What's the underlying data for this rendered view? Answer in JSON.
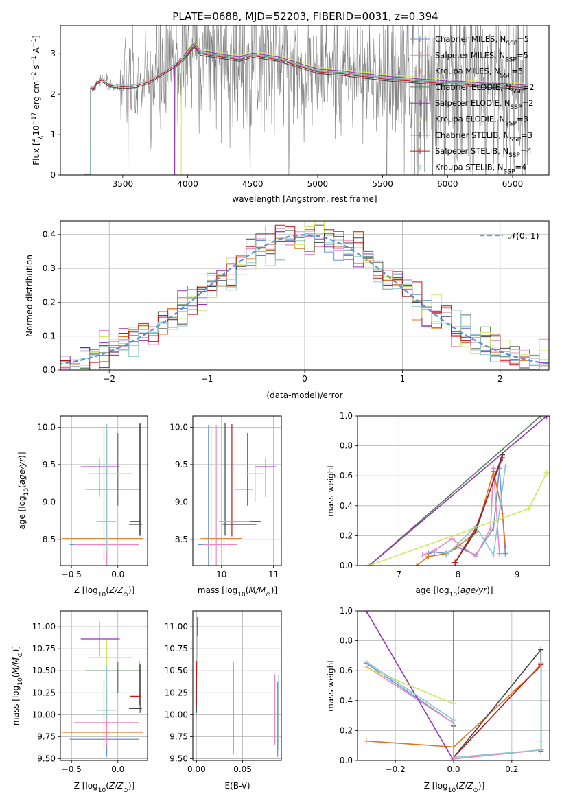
{
  "figure_title": "PLATE=0688, MJD=52203, FIBERID=0031, z=0.394",
  "colors": {
    "chabrier_miles": "#6a93d6",
    "salpeter_miles": "#e78ac3",
    "kroupa_miles": "#e1731f",
    "chabrier_elodie": "#4f7f58",
    "salpeter_elodie": "#9a30b8",
    "kroupa_elodie": "#cfe85a",
    "chabrier_stelib": "#454545",
    "salpeter_stelib": "#c0191b",
    "kroupa_stelib": "#8fc7cf",
    "data": "#808080",
    "gaussian": "#5b8fd6",
    "grid": "#b0b0b0"
  },
  "legend": [
    {
      "key": "chabrier_miles",
      "label": "Chabrier MILES, N",
      "sub": "SSP",
      "suffix": "=5"
    },
    {
      "key": "salpeter_miles",
      "label": "Salpeter MILES, N",
      "sub": "SSP",
      "suffix": "=5"
    },
    {
      "key": "kroupa_miles",
      "label": "Kroupa MILES, N",
      "sub": "SSP",
      "suffix": "=5"
    },
    {
      "key": "chabrier_elodie",
      "label": "Chabrier ELODIE, N",
      "sub": "SSP",
      "suffix": "=2"
    },
    {
      "key": "salpeter_elodie",
      "label": "Salpeter ELODIE, N",
      "sub": "SSP",
      "suffix": "=2"
    },
    {
      "key": "kroupa_elodie",
      "label": "Kroupa ELODIE, N",
      "sub": "SSP",
      "suffix": "=3"
    },
    {
      "key": "chabrier_stelib",
      "label": "Chabrier STELIB, N",
      "sub": "SSP",
      "suffix": "=3"
    },
    {
      "key": "salpeter_stelib",
      "label": "Salpeter STELIB, N",
      "sub": "SSP",
      "suffix": "=4"
    },
    {
      "key": "kroupa_stelib",
      "label": "Kroupa STELIB, N",
      "sub": "SSP",
      "suffix": "=4"
    }
  ],
  "chart_data": [
    {
      "id": "spectrum",
      "type": "line",
      "xlabel": "wavelength [Angstrom, rest frame]",
      "ylabel_parts": [
        "Flux [f",
        "λ",
        "10",
        "−17",
        " erg cm",
        "−2",
        " s",
        "−1",
        " A",
        "−1",
        "]"
      ],
      "xlim": [
        3020,
        6780
      ],
      "ylim": [
        0,
        3.7
      ],
      "xticks": [
        3500,
        4000,
        4500,
        5000,
        5500,
        6000,
        6500
      ],
      "yticks": [
        0,
        1,
        2,
        3
      ],
      "grid": false,
      "legend_placement": "upper right",
      "model_continuum": {
        "x": [
          3280,
          3300,
          3340,
          3400,
          3500,
          3600,
          3700,
          3800,
          3900,
          3960,
          4000,
          4050,
          4100,
          4200,
          4300,
          4400,
          4500,
          4600,
          4700,
          4800,
          4900,
          5000,
          5100,
          5200,
          5300,
          5400,
          5500,
          5600,
          5700,
          5800,
          5900,
          6000,
          6100,
          6200,
          6300,
          6400,
          6500,
          6600
        ],
        "y": [
          2.15,
          2.3,
          2.35,
          2.22,
          2.18,
          2.2,
          2.3,
          2.5,
          2.7,
          2.85,
          3.0,
          3.2,
          3.0,
          2.95,
          2.9,
          2.85,
          2.95,
          2.9,
          2.85,
          2.75,
          2.65,
          2.55,
          2.52,
          2.5,
          2.45,
          2.42,
          2.38,
          2.35,
          2.33,
          2.3,
          2.28,
          2.25,
          2.25,
          2.22,
          2.2,
          2.2,
          2.18,
          2.15
        ]
      },
      "model_start_wavelengths": {
        "chabrier_miles": 3540,
        "salpeter_miles": 3540,
        "kroupa_miles": 3540,
        "chabrier_elodie": 3900,
        "salpeter_elodie": 3900,
        "kroupa_elodie": 3950,
        "chabrier_stelib": 3250,
        "salpeter_stelib": 3250,
        "kroupa_stelib": 3250
      },
      "data_range": [
        3200,
        6620
      ]
    },
    {
      "id": "residuals",
      "type": "histogram",
      "xlabel": "(data-model)/error",
      "ylabel": "Normed distribution",
      "xlim": [
        -2.5,
        2.5
      ],
      "ylim": [
        0,
        0.44
      ],
      "xticks": [
        -2,
        -1,
        0,
        1,
        2
      ],
      "yticks": [
        0.0,
        0.1,
        0.2,
        0.3,
        0.4
      ],
      "grid": true,
      "legend": [
        {
          "label": "𝒩(0, 1)",
          "style": "dashed"
        }
      ],
      "bin_width": 0.1,
      "series_hint": "nine step histograms following a unit normal density"
    },
    {
      "id": "age_vs_Z",
      "type": "errorbar",
      "xlabel": "Z [log",
      "xlabel_sub": "10",
      "xlabel_rest": "(Z/Z",
      "ylabel": "age  [log",
      "xlim": [
        -0.62,
        0.32
      ],
      "ylim": [
        8.15,
        10.15
      ],
      "xticks": [
        -0.5,
        0.0
      ],
      "yticks": [
        8.5,
        9.0,
        9.5,
        10.0
      ],
      "grid": true,
      "points": [
        {
          "key": "chabrier_miles",
          "x": -0.12,
          "xerr": [
            0.4,
            0.35
          ],
          "y": 8.43,
          "yerr": [
            0.3,
            1.6
          ]
        },
        {
          "key": "salpeter_miles",
          "x": -0.12,
          "xerr": [
            0.35,
            0.35
          ],
          "y": 8.43,
          "yerr": [
            0.3,
            1.6
          ]
        },
        {
          "key": "kroupa_miles",
          "x": -0.15,
          "xerr": [
            0.45,
            0.42
          ],
          "y": 8.51,
          "yerr": [
            0.3,
            1.5
          ]
        },
        {
          "key": "chabrier_elodie",
          "x": 0.0,
          "xerr": [
            0.35,
            0.25
          ],
          "y": 9.17,
          "yerr": [
            0.22,
            0.75
          ]
        },
        {
          "key": "salpeter_elodie",
          "x": -0.2,
          "xerr": [
            0.2,
            0.22
          ],
          "y": 9.47,
          "yerr": [
            0.4,
            0.12
          ]
        },
        {
          "key": "kroupa_elodie",
          "x": -0.12,
          "xerr": [
            0.2,
            0.28
          ],
          "y": 9.38,
          "yerr": [
            0.38,
            0.12
          ]
        },
        {
          "key": "chabrier_stelib",
          "x": 0.24,
          "xerr": [
            0.12,
            0.02
          ],
          "y": 8.7,
          "yerr": [
            0.15,
            1.35
          ]
        },
        {
          "key": "salpeter_stelib",
          "x": 0.23,
          "xerr": [
            0.1,
            0.02
          ],
          "y": 8.74,
          "yerr": [
            0.2,
            1.3
          ]
        },
        {
          "key": "kroupa_stelib",
          "x": -0.12,
          "xerr": [
            0.1,
            0.1
          ],
          "y": 8.74,
          "yerr": [
            0.4,
            1.3
          ]
        }
      ]
    },
    {
      "id": "age_vs_mass",
      "type": "errorbar",
      "xlim": [
        9.45,
        11.15
      ],
      "ylim": [
        8.15,
        10.15
      ],
      "xticks": [
        10,
        11
      ],
      "yticks": [
        8.5,
        9.0,
        9.5,
        10.0
      ],
      "grid": true,
      "points": [
        {
          "key": "chabrier_miles",
          "x": 9.75,
          "xerr": [
            0.2,
            0.2
          ],
          "y": 8.43,
          "yerr": [
            0.3,
            1.6
          ]
        },
        {
          "key": "salpeter_miles",
          "x": 9.9,
          "xerr": [
            0.25,
            0.4
          ],
          "y": 8.43,
          "yerr": [
            0.3,
            1.6
          ]
        },
        {
          "key": "kroupa_miles",
          "x": 9.8,
          "xerr": [
            0.2,
            0.6
          ],
          "y": 8.51,
          "yerr": [
            0.3,
            1.5
          ]
        },
        {
          "key": "chabrier_elodie",
          "x": 10.5,
          "xerr": [
            0.25,
            0.1
          ],
          "y": 9.17,
          "yerr": [
            0.22,
            0.75
          ]
        },
        {
          "key": "salpeter_elodie",
          "x": 10.85,
          "xerr": [
            0.2,
            0.2
          ],
          "y": 9.47,
          "yerr": [
            0.4,
            0.12
          ]
        },
        {
          "key": "kroupa_elodie",
          "x": 10.65,
          "xerr": [
            0.2,
            0.2
          ],
          "y": 9.38,
          "yerr": [
            0.38,
            0.12
          ]
        },
        {
          "key": "chabrier_stelib",
          "x": 10.07,
          "xerr": [
            0.05,
            0.6
          ],
          "y": 8.7,
          "yerr": [
            0.15,
            1.35
          ]
        },
        {
          "key": "salpeter_stelib",
          "x": 10.2,
          "xerr": [
            0.1,
            0.55
          ],
          "y": 8.74,
          "yerr": [
            0.2,
            1.3
          ]
        },
        {
          "key": "kroupa_stelib",
          "x": 10.05,
          "xerr": [
            0.1,
            0.5
          ],
          "y": 8.74,
          "yerr": [
            0.4,
            1.3
          ]
        }
      ]
    },
    {
      "id": "weight_vs_age",
      "type": "line",
      "ylabel": "mass weight",
      "xlim": [
        6.3,
        9.55
      ],
      "ylim": [
        0,
        1.0
      ],
      "xticks": [
        7,
        8,
        9
      ],
      "yticks": [
        0.0,
        0.2,
        0.4,
        0.6,
        0.8,
        1.0
      ],
      "grid": true,
      "series": [
        {
          "key": "chabrier_miles",
          "x": [
            7.5,
            7.6,
            7.8,
            8.0,
            8.3,
            8.6,
            8.7,
            8.8
          ],
          "y": [
            0.08,
            0.09,
            0.08,
            0.12,
            0.07,
            0.25,
            0.65,
            0.08
          ]
        },
        {
          "key": "salpeter_miles",
          "x": [
            7.4,
            7.6,
            7.9,
            8.3,
            8.55,
            8.6,
            8.7
          ],
          "y": [
            0.07,
            0.1,
            0.18,
            0.06,
            0.25,
            0.65,
            0.08
          ]
        },
        {
          "key": "kroupa_miles",
          "x": [
            7.3,
            7.5,
            7.8,
            8.0,
            8.3,
            8.6,
            8.75,
            8.8
          ],
          "y": [
            0.0,
            0.06,
            0.08,
            0.13,
            0.22,
            0.63,
            0.35,
            0.13
          ]
        },
        {
          "key": "chabrier_elodie",
          "x": [
            6.5,
            9.4
          ],
          "y": [
            0.0,
            1.0
          ]
        },
        {
          "key": "salpeter_elodie",
          "x": [
            6.5,
            9.5
          ],
          "y": [
            0.0,
            1.0
          ]
        },
        {
          "key": "kroupa_elodie",
          "x": [
            6.5,
            9.2,
            9.5
          ],
          "y": [
            0.0,
            0.38,
            0.62
          ]
        },
        {
          "key": "chabrier_stelib",
          "x": [
            7.95,
            8.3,
            8.75
          ],
          "y": [
            0.02,
            0.23,
            0.74
          ]
        },
        {
          "key": "salpeter_stelib",
          "x": [
            7.95,
            8.3,
            8.75
          ],
          "y": [
            0.02,
            0.25,
            0.72
          ]
        },
        {
          "key": "kroupa_stelib",
          "x": [
            7.8,
            8.3,
            8.6,
            8.8
          ],
          "y": [
            0.07,
            0.26,
            0.07,
            0.66
          ]
        }
      ]
    },
    {
      "id": "mass_vs_Z",
      "type": "errorbar",
      "xlim": [
        -0.62,
        0.32
      ],
      "ylim": [
        9.48,
        11.18
      ],
      "xticks": [
        -0.5,
        0.0
      ],
      "yticks": [
        9.5,
        9.75,
        10.0,
        10.25,
        10.5,
        10.75,
        11.0
      ],
      "grid": true,
      "points": [
        {
          "key": "chabrier_miles",
          "x": -0.12,
          "xerr": [
            0.4,
            0.35
          ],
          "y": 9.72,
          "yerr": [
            0.2,
            0.2
          ]
        },
        {
          "key": "salpeter_miles",
          "x": -0.12,
          "xerr": [
            0.35,
            0.35
          ],
          "y": 9.91,
          "yerr": [
            0.25,
            0.4
          ]
        },
        {
          "key": "kroupa_miles",
          "x": -0.15,
          "xerr": [
            0.45,
            0.42
          ],
          "y": 9.8,
          "yerr": [
            0.2,
            0.6
          ]
        },
        {
          "key": "chabrier_elodie",
          "x": 0.0,
          "xerr": [
            0.35,
            0.25
          ],
          "y": 10.5,
          "yerr": [
            0.25,
            0.1
          ]
        },
        {
          "key": "salpeter_elodie",
          "x": -0.2,
          "xerr": [
            0.2,
            0.22
          ],
          "y": 10.86,
          "yerr": [
            0.2,
            0.2
          ]
        },
        {
          "key": "kroupa_elodie",
          "x": -0.12,
          "xerr": [
            0.2,
            0.28
          ],
          "y": 10.65,
          "yerr": [
            0.2,
            0.2
          ]
        },
        {
          "key": "chabrier_stelib",
          "x": 0.24,
          "xerr": [
            0.12,
            0.02
          ],
          "y": 10.07,
          "yerr": [
            0.05,
            0.5
          ]
        },
        {
          "key": "salpeter_stelib",
          "x": 0.23,
          "xerr": [
            0.1,
            0.02
          ],
          "y": 10.21,
          "yerr": [
            0.1,
            0.4
          ]
        },
        {
          "key": "kroupa_stelib",
          "x": -0.12,
          "xerr": [
            0.1,
            0.1
          ],
          "y": 10.05,
          "yerr": [
            0.1,
            0.5
          ]
        }
      ]
    },
    {
      "id": "mass_vs_ebv",
      "type": "errorbar",
      "xlabel": "E(B-V)",
      "xlim": [
        -0.004,
        0.092
      ],
      "ylim": [
        9.48,
        11.18
      ],
      "xticks": [
        0.0,
        0.05
      ],
      "xticklabels": [
        "0.00",
        "0.05"
      ],
      "yticks": [
        9.5,
        9.75,
        10.0,
        10.25,
        10.5,
        10.75,
        11.0
      ],
      "grid": true,
      "points": [
        {
          "key": "chabrier_miles",
          "x": 0.088,
          "xerr": [
            0,
            0
          ],
          "y": 9.72,
          "yerr": [
            0.2,
            0.65
          ]
        },
        {
          "key": "salpeter_miles",
          "x": 0.085,
          "xerr": [
            0,
            0
          ],
          "y": 9.91,
          "yerr": [
            0.25,
            0.55
          ]
        },
        {
          "key": "kroupa_miles",
          "x": 0.04,
          "xerr": [
            0,
            0
          ],
          "y": 10.1,
          "yerr": [
            0.55,
            0.5
          ]
        },
        {
          "key": "chabrier_elodie",
          "x": 0.0,
          "xerr": [
            0,
            0
          ],
          "y": 10.5,
          "yerr": [
            0.25,
            0.1
          ]
        },
        {
          "key": "salpeter_elodie",
          "x": 0.001,
          "xerr": [
            0,
            0
          ],
          "y": 10.86,
          "yerr": [
            0.2,
            0.25
          ]
        },
        {
          "key": "kroupa_elodie",
          "x": 0.001,
          "xerr": [
            0,
            0
          ],
          "y": 10.65,
          "yerr": [
            0.2,
            0.25
          ]
        },
        {
          "key": "chabrier_stelib",
          "x": 0.0,
          "xerr": [
            0,
            0
          ],
          "y": 10.07,
          "yerr": [
            0.05,
            0.5
          ]
        },
        {
          "key": "salpeter_stelib",
          "x": 0.0,
          "xerr": [
            0,
            0
          ],
          "y": 10.21,
          "yerr": [
            0.1,
            0.4
          ]
        },
        {
          "key": "kroupa_stelib",
          "x": 0.089,
          "xerr": [
            0,
            0
          ],
          "y": 10.05,
          "yerr": [
            0.45,
            0.4
          ]
        }
      ]
    },
    {
      "id": "weight_vs_Z",
      "type": "line",
      "ylabel": "mass weight",
      "xlim": [
        -0.33,
        0.33
      ],
      "ylim": [
        0,
        1.0
      ],
      "xticks": [
        -0.2,
        0.0,
        0.2
      ],
      "yticks": [
        0.0,
        0.2,
        0.4,
        0.6,
        0.8,
        1.0
      ],
      "grid": true,
      "series": [
        {
          "key": "chabrier_miles",
          "x": [
            -0.3,
            0.0,
            0.0,
            0.3,
            0.3
          ],
          "y": [
            0.65,
            0.25,
            0.01,
            0.07,
            0.65
          ]
        },
        {
          "key": "salpeter_miles",
          "x": [
            -0.3,
            0.0,
            0.0,
            0.3,
            0.3
          ],
          "y": [
            0.63,
            0.25,
            0.01,
            0.07,
            0.65
          ]
        },
        {
          "key": "kroupa_miles",
          "x": [
            -0.3,
            0.0,
            0.3,
            0.3
          ],
          "y": [
            0.13,
            0.09,
            0.63,
            0.13
          ]
        },
        {
          "key": "chabrier_elodie",
          "x": [
            0.0,
            0.0
          ],
          "y": [
            0.0,
            1.0
          ]
        },
        {
          "key": "salpeter_elodie",
          "x": [
            -0.3,
            0.0,
            0.0
          ],
          "y": [
            1.0,
            0.0,
            0.0
          ]
        },
        {
          "key": "kroupa_elodie",
          "x": [
            -0.3,
            0.0,
            0.0
          ],
          "y": [
            0.62,
            0.38,
            0.0
          ]
        },
        {
          "key": "chabrier_stelib",
          "x": [
            0.0,
            0.0,
            0.3,
            0.3
          ],
          "y": [
            0.23,
            0.02,
            0.74,
            0.06
          ]
        },
        {
          "key": "salpeter_stelib",
          "x": [
            0.0,
            0.3,
            0.3
          ],
          "y": [
            0.02,
            0.64,
            0.07
          ]
        },
        {
          "key": "kroupa_stelib",
          "x": [
            -0.3,
            0.0,
            0.0,
            0.3,
            0.3
          ],
          "y": [
            0.66,
            0.27,
            0.02,
            0.07,
            0.65
          ]
        }
      ]
    }
  ]
}
